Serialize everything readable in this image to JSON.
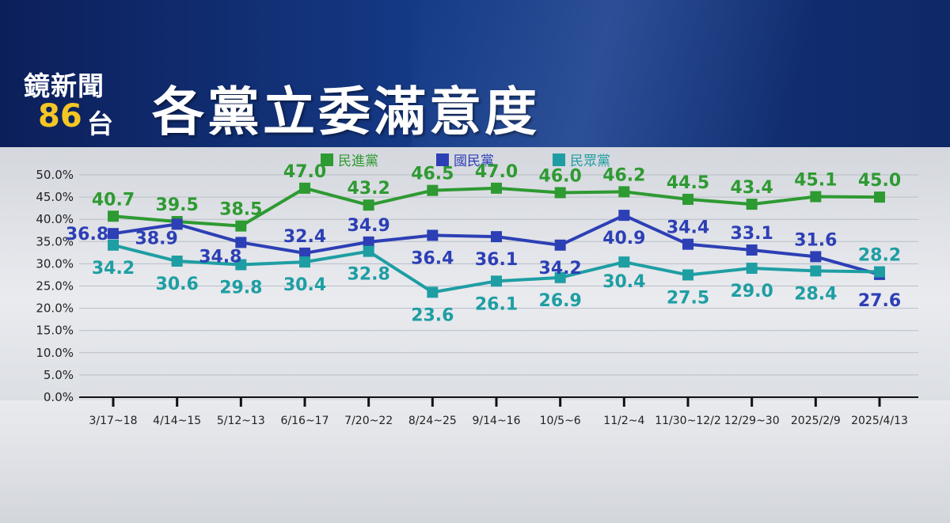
{
  "header": {
    "logo_line1": "鏡新聞",
    "logo_number": "86",
    "logo_suffix": "台",
    "title": "各黨立委滿意度"
  },
  "colors": {
    "banner": "#123075",
    "logo_number": "#f3c623"
  },
  "chart_data": {
    "type": "line",
    "title": "各黨立委滿意度",
    "categories": [
      "3/17~18",
      "4/14~15",
      "5/12~13",
      "6/16~17",
      "7/20~22",
      "8/24~25",
      "9/14~16",
      "10/5~6",
      "11/2~4",
      "11/30~12/2",
      "12/29~30",
      "2025/2/9",
      "2025/4/13"
    ],
    "y_ticks": [
      "50.0%",
      "45.0%",
      "40.0%",
      "35.0%",
      "30.0%",
      "25.0%",
      "20.0%",
      "15.0%",
      "10.0%",
      "5.0%",
      "0.0%"
    ],
    "ylim": [
      0,
      50
    ],
    "grid": true,
    "legend_position": "top-center",
    "series": [
      {
        "name": "民進黨",
        "color": "#2e9a32",
        "values": [
          40.7,
          39.5,
          38.5,
          47.0,
          43.2,
          46.5,
          47.0,
          46.0,
          46.2,
          44.5,
          43.4,
          45.1,
          45.0
        ],
        "labels": [
          "40.7",
          "39.5",
          "38.5",
          "47.0",
          "43.2",
          "46.5",
          "47.0",
          "46.0",
          "46.2",
          "44.5",
          "43.4",
          "45.1",
          "45.0"
        ]
      },
      {
        "name": "國民黨",
        "color": "#2d3fb5",
        "values": [
          36.8,
          38.9,
          34.8,
          32.4,
          34.9,
          36.4,
          36.1,
          34.2,
          40.9,
          34.4,
          33.1,
          31.6,
          27.6
        ],
        "labels": [
          "36.8",
          "38.9",
          "34.8",
          "32.4",
          "34.9",
          "36.4",
          "36.1",
          "34.2",
          "40.9",
          "34.4",
          "33.1",
          "31.6",
          "27.6"
        ]
      },
      {
        "name": "民眾黨",
        "color": "#1e9ea3",
        "values": [
          34.2,
          30.6,
          29.8,
          30.4,
          32.8,
          23.6,
          26.1,
          26.9,
          30.4,
          27.5,
          29.0,
          28.4,
          28.2
        ],
        "labels": [
          "34.2",
          "30.6",
          "29.8",
          "30.4",
          "32.8",
          "23.6",
          "26.1",
          "26.9",
          "30.4",
          "27.5",
          "29.0",
          "28.4",
          "28.2"
        ]
      }
    ]
  }
}
